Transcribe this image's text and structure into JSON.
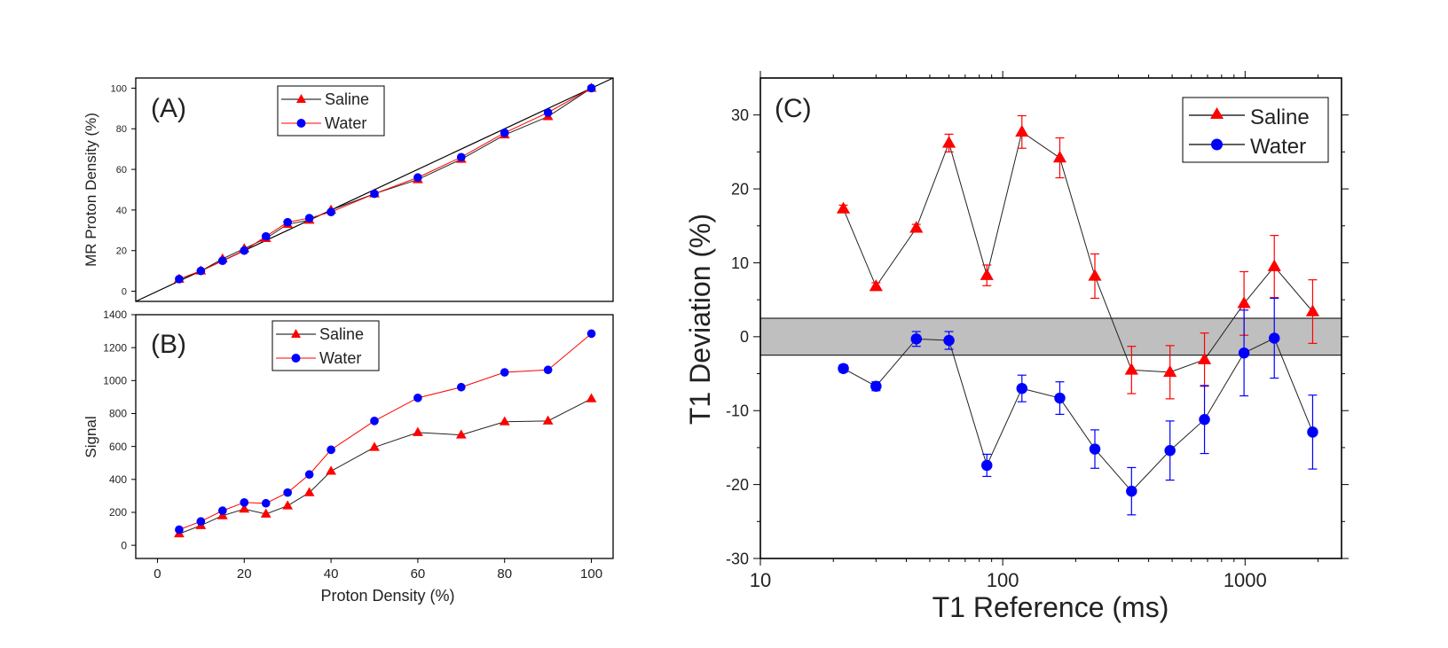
{
  "colors": {
    "saline": "#ff0000",
    "water": "#0000ff",
    "axis": "#000000",
    "band": "#bfbfbf"
  },
  "chart_data": [
    {
      "panel": "A",
      "panel_label": "(A)",
      "type": "line",
      "xlabel": "",
      "ylabel": "MR Proton Density (%)",
      "xlim": [
        -5,
        105
      ],
      "ylim": [
        -5,
        105
      ],
      "yticks": [
        0,
        20,
        40,
        60,
        80,
        100
      ],
      "identity_line": true,
      "legend": {
        "position": "top-center",
        "entries": [
          "Saline",
          "Water"
        ]
      },
      "x": [
        5,
        10,
        15,
        20,
        25,
        30,
        35,
        40,
        50,
        60,
        70,
        80,
        90,
        100
      ],
      "series": [
        {
          "name": "Saline",
          "marker": "triangle",
          "values": [
            6,
            10,
            16,
            21,
            26,
            33,
            35,
            40,
            48,
            55,
            65,
            77,
            86,
            100
          ]
        },
        {
          "name": "Water",
          "marker": "circle",
          "values": [
            6,
            10,
            15,
            20,
            27,
            34,
            36,
            39,
            48,
            56,
            66,
            78,
            88,
            100
          ]
        }
      ]
    },
    {
      "panel": "B",
      "panel_label": "(B)",
      "type": "line",
      "xlabel": "Proton Density (%)",
      "ylabel": "Signal",
      "xlim": [
        -5,
        105
      ],
      "ylim": [
        -80,
        1400
      ],
      "xticks": [
        0,
        20,
        40,
        60,
        80,
        100
      ],
      "yticks": [
        0,
        200,
        400,
        600,
        800,
        1000,
        1200,
        1400
      ],
      "legend": {
        "position": "top-center",
        "entries": [
          "Saline",
          "Water"
        ]
      },
      "x": [
        5,
        10,
        15,
        20,
        25,
        30,
        35,
        40,
        50,
        60,
        70,
        80,
        90,
        100
      ],
      "series": [
        {
          "name": "Saline",
          "marker": "triangle",
          "values": [
            70,
            120,
            180,
            220,
            190,
            240,
            320,
            450,
            595,
            685,
            670,
            750,
            755,
            890
          ]
        },
        {
          "name": "Water",
          "marker": "circle",
          "values": [
            95,
            145,
            210,
            260,
            255,
            320,
            430,
            580,
            755,
            895,
            960,
            1050,
            1065,
            1285
          ]
        }
      ]
    },
    {
      "panel": "C",
      "panel_label": "(C)",
      "type": "scatter",
      "xlabel": "T1 Reference (ms)",
      "ylabel": "T1 Deviation (%)",
      "xscale": "log",
      "xlim": [
        10,
        2500
      ],
      "ylim": [
        -30,
        35
      ],
      "xticks": [
        10,
        100,
        1000
      ],
      "yticks": [
        -30,
        -20,
        -10,
        0,
        10,
        20,
        30
      ],
      "band": [
        -2.5,
        2.5
      ],
      "legend": {
        "position": "top-right",
        "entries": [
          "Saline",
          "Water"
        ]
      },
      "x": [
        22,
        30,
        44,
        60,
        86,
        120,
        172,
        240,
        340,
        490,
        680,
        990,
        1320,
        1900
      ],
      "series": [
        {
          "name": "Saline",
          "marker": "triangle",
          "values": [
            17.3,
            6.8,
            14.7,
            26.2,
            8.3,
            27.7,
            24.2,
            8.2,
            -4.5,
            -4.8,
            -3.1,
            4.5,
            9.5,
            3.4
          ],
          "errors": [
            0.5,
            0.5,
            0.5,
            1.2,
            1.4,
            2.2,
            2.7,
            3.0,
            3.2,
            3.6,
            3.6,
            4.3,
            4.2,
            4.3
          ]
        },
        {
          "name": "Water",
          "marker": "circle",
          "values": [
            -4.3,
            -6.7,
            -0.3,
            -0.5,
            -17.4,
            -7.0,
            -8.3,
            -15.2,
            -20.9,
            -15.4,
            -11.2,
            -2.2,
            -0.2,
            -12.9
          ],
          "errors": [
            0.5,
            0.6,
            1.0,
            1.2,
            1.5,
            1.8,
            2.2,
            2.6,
            3.2,
            4.0,
            4.6,
            5.8,
            5.4,
            5.0
          ]
        }
      ]
    }
  ]
}
